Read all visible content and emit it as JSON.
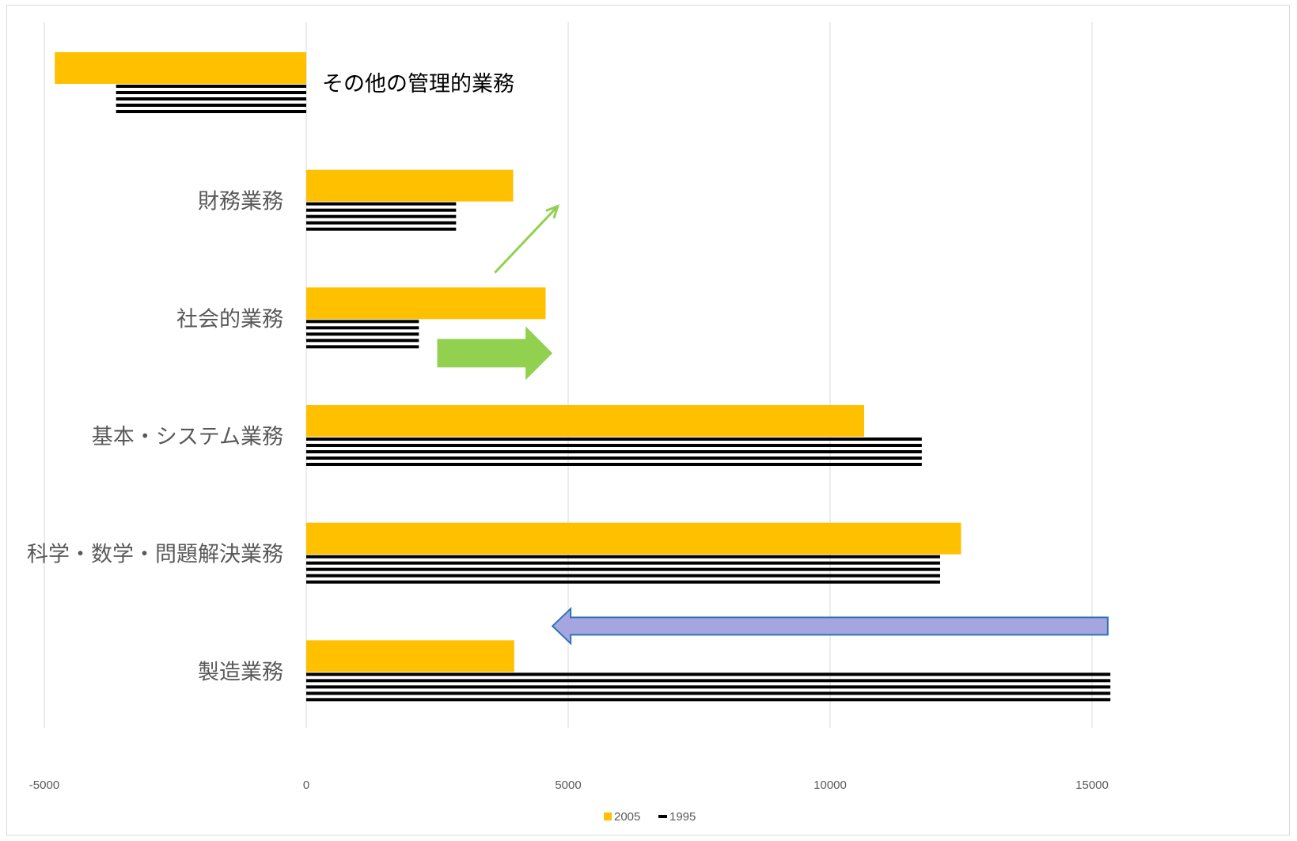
{
  "chart_data": {
    "type": "bar",
    "orientation": "horizontal",
    "categories": [
      "その他の管理的業務",
      "財務業務",
      "社会的業務",
      "基本・システム業務",
      "科学・数学・問題解決業務",
      "製造業務"
    ],
    "series": [
      {
        "name": "2005",
        "color": "#FFC000",
        "values": [
          -4800,
          3950,
          4570,
          10650,
          12500,
          3970
        ]
      },
      {
        "name": "1995",
        "color": "#000000",
        "pattern": "horizontal-stripes",
        "values": [
          -3630,
          2860,
          2150,
          11750,
          12100,
          15350
        ]
      }
    ],
    "xlim": [
      -5000,
      18000
    ],
    "xticks": [
      -5000,
      0,
      5000,
      10000,
      15000
    ],
    "gridlines": true,
    "legend": "bottom",
    "annotations": [
      {
        "type": "thin-arrow",
        "color": "#92D050",
        "from": [
          3600,
          "財務業務-below"
        ],
        "to": [
          4800,
          "財務業務-above"
        ]
      },
      {
        "type": "block-arrow-right",
        "color": "#92D050",
        "from": 2500,
        "to": 4700,
        "near": "社会的業務"
      },
      {
        "type": "block-arrow-left",
        "color": "#A5A5E0",
        "border": "#2E75B6",
        "from": 15300,
        "to": 4700,
        "near": "製造業務"
      }
    ]
  }
}
